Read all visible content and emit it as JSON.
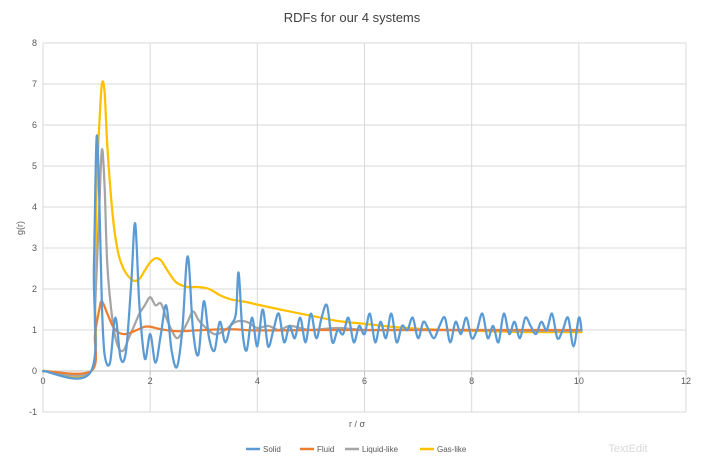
{
  "chart_data": {
    "type": "line",
    "title": "RDFs for our 4 systems",
    "xlabel": "r / σ",
    "ylabel": "g(r)",
    "xlim": [
      0,
      12
    ],
    "ylim": [
      -1,
      8
    ],
    "xticks": [
      0,
      2,
      4,
      6,
      8,
      10,
      12
    ],
    "yticks": [
      -1,
      0,
      1,
      2,
      3,
      4,
      5,
      6,
      7,
      8
    ],
    "grid": true,
    "legend_position": "bottom",
    "series": [
      {
        "name": "Solid",
        "color": "#5B9BD5",
        "points": [
          [
            0,
            0
          ],
          [
            0.9,
            0
          ],
          [
            0.95,
            2.5
          ],
          [
            1.0,
            5.7
          ],
          [
            1.05,
            4.2
          ],
          [
            1.1,
            1.6
          ],
          [
            1.15,
            0.4
          ],
          [
            1.25,
            0.2
          ],
          [
            1.35,
            1.3
          ],
          [
            1.45,
            0.3
          ],
          [
            1.55,
            0.5
          ],
          [
            1.65,
            2.2
          ],
          [
            1.72,
            3.6
          ],
          [
            1.8,
            1.6
          ],
          [
            1.9,
            0.3
          ],
          [
            2.0,
            0.9
          ],
          [
            2.1,
            0.2
          ],
          [
            2.2,
            0.9
          ],
          [
            2.3,
            1.6
          ],
          [
            2.4,
            0.5
          ],
          [
            2.5,
            0.1
          ],
          [
            2.6,
            1.0
          ],
          [
            2.7,
            2.8
          ],
          [
            2.8,
            1.0
          ],
          [
            2.9,
            0.4
          ],
          [
            3.0,
            1.7
          ],
          [
            3.1,
            0.8
          ],
          [
            3.2,
            0.5
          ],
          [
            3.3,
            1.2
          ],
          [
            3.4,
            0.7
          ],
          [
            3.5,
            1.1
          ],
          [
            3.6,
            1.4
          ],
          [
            3.65,
            2.4
          ],
          [
            3.72,
            1.0
          ],
          [
            3.8,
            0.5
          ],
          [
            3.9,
            1.3
          ],
          [
            4.0,
            0.6
          ],
          [
            4.1,
            1.5
          ],
          [
            4.2,
            0.6
          ],
          [
            4.3,
            1.0
          ],
          [
            4.4,
            1.4
          ],
          [
            4.5,
            0.7
          ],
          [
            4.6,
            1.1
          ],
          [
            4.7,
            0.8
          ],
          [
            4.8,
            1.3
          ],
          [
            4.9,
            0.7
          ],
          [
            5.0,
            1.4
          ],
          [
            5.1,
            0.8
          ],
          [
            5.2,
            1.3
          ],
          [
            5.3,
            1.6
          ],
          [
            5.4,
            0.7
          ],
          [
            5.5,
            1.0
          ],
          [
            5.6,
            0.9
          ],
          [
            5.7,
            1.3
          ],
          [
            5.8,
            0.7
          ],
          [
            5.9,
            1.1
          ],
          [
            6.0,
            0.9
          ],
          [
            6.1,
            1.4
          ],
          [
            6.2,
            0.7
          ],
          [
            6.3,
            1.2
          ],
          [
            6.4,
            0.8
          ],
          [
            6.5,
            1.4
          ],
          [
            6.6,
            0.7
          ],
          [
            6.7,
            1.1
          ],
          [
            6.8,
            1.0
          ],
          [
            6.9,
            1.3
          ],
          [
            7.0,
            0.8
          ],
          [
            7.1,
            1.2
          ],
          [
            7.2,
            1.0
          ],
          [
            7.3,
            0.8
          ],
          [
            7.4,
            1.1
          ],
          [
            7.5,
            1.3
          ],
          [
            7.6,
            0.7
          ],
          [
            7.7,
            1.2
          ],
          [
            7.8,
            0.9
          ],
          [
            7.9,
            1.3
          ],
          [
            8.0,
            0.8
          ],
          [
            8.1,
            1.0
          ],
          [
            8.2,
            1.4
          ],
          [
            8.3,
            0.8
          ],
          [
            8.4,
            1.1
          ],
          [
            8.5,
            0.7
          ],
          [
            8.6,
            1.4
          ],
          [
            8.7,
            0.9
          ],
          [
            8.8,
            1.2
          ],
          [
            8.9,
            0.8
          ],
          [
            9.0,
            1.3
          ],
          [
            9.1,
            1.1
          ],
          [
            9.2,
            0.9
          ],
          [
            9.3,
            1.2
          ],
          [
            9.4,
            1.0
          ],
          [
            9.5,
            1.4
          ],
          [
            9.6,
            0.8
          ],
          [
            9.7,
            1.0
          ],
          [
            9.8,
            1.3
          ],
          [
            9.9,
            0.6
          ],
          [
            10.0,
            1.3
          ],
          [
            10.05,
            1.0
          ]
        ]
      },
      {
        "name": "Fluid",
        "color": "#ED7D31",
        "points": [
          [
            0,
            0
          ],
          [
            0.9,
            0
          ],
          [
            0.97,
            0.9
          ],
          [
            1.05,
            1.5
          ],
          [
            1.1,
            1.7
          ],
          [
            1.2,
            1.4
          ],
          [
            1.3,
            1.1
          ],
          [
            1.4,
            0.95
          ],
          [
            1.5,
            0.9
          ],
          [
            1.6,
            0.92
          ],
          [
            1.75,
            1.0
          ],
          [
            1.9,
            1.08
          ],
          [
            2.0,
            1.08
          ],
          [
            2.2,
            1.02
          ],
          [
            2.4,
            0.98
          ],
          [
            2.6,
            0.97
          ],
          [
            3.0,
            1.0
          ],
          [
            3.5,
            1.02
          ],
          [
            4.0,
            0.99
          ],
          [
            5.0,
            1.0
          ],
          [
            6.0,
            1.0
          ],
          [
            7.0,
            1.0
          ],
          [
            8.0,
            1.0
          ],
          [
            9.0,
            1.0
          ],
          [
            10.05,
            1.0
          ]
        ]
      },
      {
        "name": "Liquid-like",
        "color": "#A5A5A5",
        "points": [
          [
            0,
            0
          ],
          [
            0.9,
            0
          ],
          [
            0.97,
            1.5
          ],
          [
            1.05,
            4.0
          ],
          [
            1.1,
            5.4
          ],
          [
            1.15,
            4.5
          ],
          [
            1.2,
            2.6
          ],
          [
            1.3,
            1.2
          ],
          [
            1.4,
            0.6
          ],
          [
            1.5,
            0.5
          ],
          [
            1.6,
            0.8
          ],
          [
            1.7,
            1.1
          ],
          [
            1.8,
            1.4
          ],
          [
            1.9,
            1.6
          ],
          [
            2.0,
            1.8
          ],
          [
            2.1,
            1.6
          ],
          [
            2.2,
            1.65
          ],
          [
            2.3,
            1.3
          ],
          [
            2.4,
            1.0
          ],
          [
            2.5,
            0.8
          ],
          [
            2.6,
            0.95
          ],
          [
            2.7,
            1.2
          ],
          [
            2.8,
            1.45
          ],
          [
            2.9,
            1.25
          ],
          [
            3.0,
            1.1
          ],
          [
            3.2,
            0.9
          ],
          [
            3.4,
            1.0
          ],
          [
            3.6,
            1.2
          ],
          [
            3.8,
            1.2
          ],
          [
            4.0,
            1.05
          ],
          [
            4.2,
            1.1
          ],
          [
            4.4,
            1.0
          ],
          [
            4.6,
            1.1
          ],
          [
            4.8,
            1.05
          ],
          [
            5.0,
            1.0
          ],
          [
            5.5,
            1.05
          ],
          [
            6.0,
            1.0
          ],
          [
            6.5,
            1.0
          ],
          [
            7.0,
            1.0
          ],
          [
            8.0,
            1.0
          ],
          [
            9.0,
            0.98
          ],
          [
            10.05,
            0.98
          ]
        ]
      },
      {
        "name": "Gas-like",
        "color": "#FFC000",
        "points": [
          [
            0,
            0
          ],
          [
            0.9,
            0
          ],
          [
            0.97,
            2.0
          ],
          [
            1.0,
            4.5
          ],
          [
            1.05,
            6.0
          ],
          [
            1.1,
            7.0
          ],
          [
            1.15,
            6.8
          ],
          [
            1.2,
            5.5
          ],
          [
            1.3,
            3.8
          ],
          [
            1.4,
            2.9
          ],
          [
            1.5,
            2.5
          ],
          [
            1.6,
            2.3
          ],
          [
            1.7,
            2.2
          ],
          [
            1.8,
            2.25
          ],
          [
            1.9,
            2.45
          ],
          [
            2.0,
            2.65
          ],
          [
            2.1,
            2.75
          ],
          [
            2.2,
            2.7
          ],
          [
            2.3,
            2.5
          ],
          [
            2.4,
            2.3
          ],
          [
            2.5,
            2.15
          ],
          [
            2.7,
            2.05
          ],
          [
            2.9,
            2.05
          ],
          [
            3.1,
            2.0
          ],
          [
            3.3,
            1.85
          ],
          [
            3.5,
            1.75
          ],
          [
            3.8,
            1.68
          ],
          [
            4.0,
            1.62
          ],
          [
            4.5,
            1.48
          ],
          [
            5.0,
            1.35
          ],
          [
            5.5,
            1.22
          ],
          [
            6.0,
            1.15
          ],
          [
            6.5,
            1.08
          ],
          [
            7.0,
            1.03
          ],
          [
            7.5,
            1.0
          ],
          [
            8.0,
            0.98
          ],
          [
            9.0,
            0.95
          ],
          [
            10.05,
            0.95
          ]
        ]
      }
    ]
  },
  "watermark": "TextEdit"
}
